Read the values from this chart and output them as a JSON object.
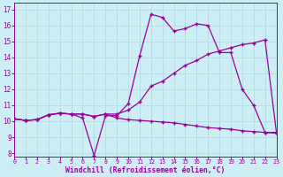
{
  "xlabel": "Windchill (Refroidissement éolien,°C)",
  "bg_color": "#cdeef5",
  "line_color": "#990099",
  "grid_color": "#b0dde8",
  "x_ticks": [
    0,
    1,
    2,
    3,
    4,
    5,
    6,
    7,
    8,
    9,
    10,
    11,
    12,
    13,
    14,
    15,
    16,
    17,
    18,
    19,
    20,
    21,
    22,
    23
  ],
  "y_ticks": [
    8,
    9,
    10,
    11,
    12,
    13,
    14,
    15,
    16,
    17
  ],
  "xlim": [
    0,
    23
  ],
  "ylim": [
    7.8,
    17.4
  ],
  "curve1_x": [
    0,
    1,
    2,
    3,
    4,
    5,
    6,
    7,
    8,
    9,
    10,
    11,
    12,
    13,
    14,
    15,
    16,
    17,
    18,
    19,
    20,
    21,
    22,
    23
  ],
  "curve1_y": [
    10.15,
    10.05,
    10.1,
    10.4,
    10.5,
    10.45,
    10.2,
    7.85,
    10.35,
    10.35,
    11.1,
    14.1,
    16.7,
    16.5,
    15.65,
    15.8,
    16.1,
    16.0,
    14.3,
    14.3,
    12.0,
    11.0,
    9.3,
    9.3
  ],
  "curve2_x": [
    0,
    1,
    2,
    3,
    4,
    5,
    6,
    7,
    8,
    9,
    10,
    11,
    12,
    13,
    14,
    15,
    16,
    17,
    18,
    19,
    20,
    21,
    22,
    23
  ],
  "curve2_y": [
    10.15,
    10.05,
    10.1,
    10.4,
    10.5,
    10.45,
    10.45,
    10.3,
    10.45,
    10.45,
    10.7,
    11.2,
    12.2,
    12.5,
    13.0,
    13.5,
    13.8,
    14.2,
    14.4,
    14.6,
    14.8,
    14.9,
    15.1,
    9.3
  ],
  "curve3_x": [
    0,
    1,
    2,
    3,
    4,
    5,
    6,
    7,
    8,
    9,
    10,
    11,
    12,
    13,
    14,
    15,
    16,
    17,
    18,
    19,
    20,
    21,
    22,
    23
  ],
  "curve3_y": [
    10.15,
    10.05,
    10.1,
    10.4,
    10.5,
    10.45,
    10.45,
    10.3,
    10.45,
    10.2,
    10.1,
    10.05,
    10.0,
    9.95,
    9.9,
    9.8,
    9.7,
    9.6,
    9.55,
    9.5,
    9.4,
    9.35,
    9.3,
    9.25
  ]
}
